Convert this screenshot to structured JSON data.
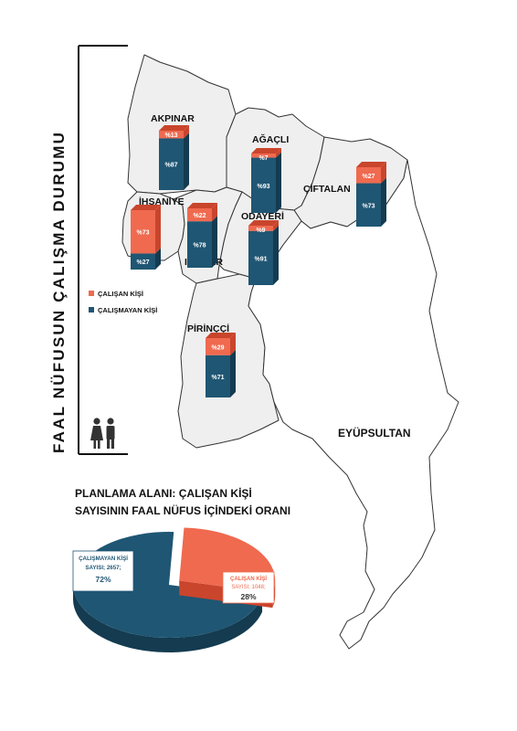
{
  "vertical_title": "FAAL NÜFUSUN ÇALIŞMA DURUMU",
  "pie_title_line1": "PLANLAMA ALANI: ÇALIŞAN KİŞİ",
  "pie_title_line2": "SAYISININ FAAL NÜFUS İÇİNDEKİ ORANI",
  "colors": {
    "working": "#ef6a4f",
    "working_top": "#c9452c",
    "not_working": "#1f5673",
    "not_working_side": "#143b50",
    "region_fill": "#efefef"
  },
  "legend": [
    {
      "label": "ÇALIŞAN KİŞİ",
      "color": "#ef6a4f"
    },
    {
      "label": "ÇALIŞMAYAN KİŞİ",
      "color": "#1f5673"
    }
  ],
  "map_labels": {
    "eyupsultan": "EYÜPSULTAN"
  },
  "icons": {
    "people": "people-icon"
  },
  "chart_data": [
    {
      "type": "bar",
      "stacked": true,
      "unit": "%",
      "categories": [
        "AKPINAR",
        "AĞAÇLI",
        "ÇİFTALAN",
        "İHSANİYE",
        "IŞIKLAR",
        "ODAYERİ",
        "PİRİNÇÇİ"
      ],
      "series": [
        {
          "name": "ÇALIŞAN KİŞİ",
          "values": [
            13,
            7,
            27,
            73,
            22,
            9,
            29
          ],
          "labels": [
            "%13",
            "%7",
            "%27",
            "%73",
            "%22",
            "%9",
            "%29"
          ]
        },
        {
          "name": "ÇALIŞMAYAN KİŞİ",
          "values": [
            87,
            93,
            73,
            27,
            78,
            91,
            71
          ],
          "labels": [
            "%87",
            "%93",
            "%73",
            "%27",
            "%78",
            "%91",
            "%71"
          ]
        }
      ]
    },
    {
      "type": "pie",
      "title": "PLANLAMA ALANI: ÇALIŞAN KİŞİ SAYISININ FAAL NÜFUS İÇİNDEKİ ORANI",
      "slices": [
        {
          "name": "ÇALIŞMAYAN KİŞİ",
          "count_text": "SAYISI; 2657;",
          "count": 2657,
          "percent_text": "72%",
          "value": 72
        },
        {
          "name": "ÇALIŞAN KİŞİ",
          "count_text": "SAYISI; 1048;",
          "count": 1048,
          "percent_text": "28%",
          "value": 28
        }
      ]
    }
  ]
}
